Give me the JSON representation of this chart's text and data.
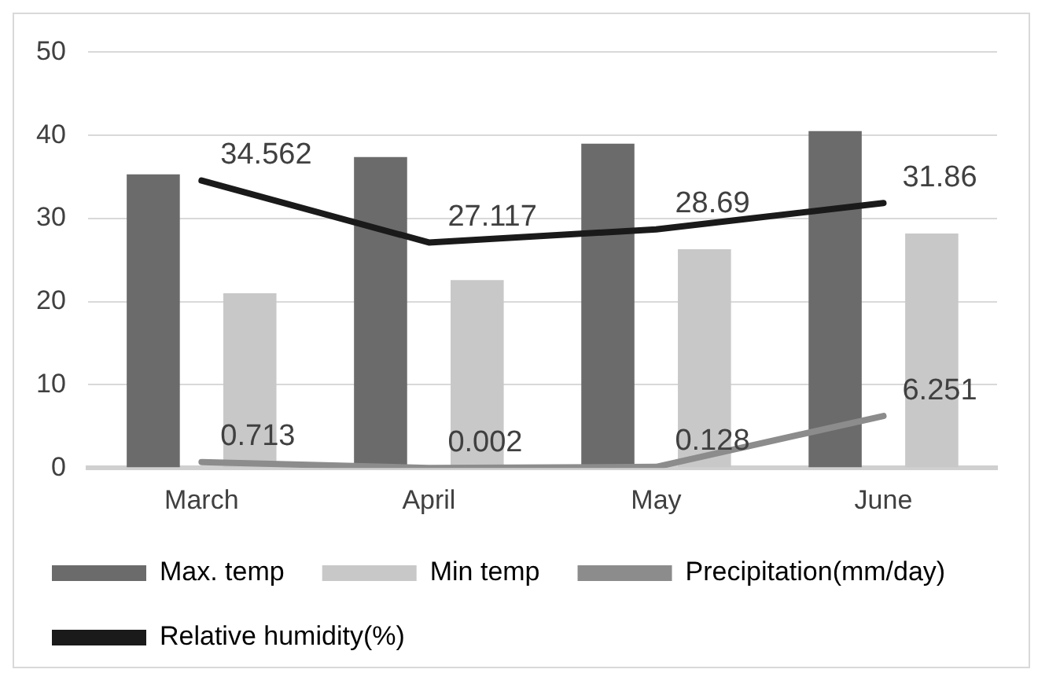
{
  "chart_data": {
    "type": "bar",
    "categories": [
      "March",
      "April",
      "May",
      "June"
    ],
    "series": [
      {
        "name": "Max. temp",
        "color": "#6b6b6b",
        "values": [
          35.3,
          37.4,
          39,
          40.5
        ]
      },
      {
        "name": "Min temp",
        "color": "#c8c8c8",
        "values": [
          21,
          22.6,
          26.3,
          28.2
        ]
      },
      {
        "name": "Precipitation(mm/day)",
        "type": "line",
        "color": "#8c8c8c",
        "values": [
          0.713,
          0.002,
          0.128,
          6.251
        ],
        "value_labels": [
          "0.713",
          "0.002",
          "0.128",
          "6.251"
        ]
      },
      {
        "name": "Relative humidity(%)",
        "type": "line",
        "color": "#1a1a1a",
        "values": [
          34.562,
          27.117,
          28.69,
          31.86
        ],
        "value_labels": [
          "34.562",
          "27.117",
          "28.69",
          "31.86"
        ]
      }
    ],
    "ylim": [
      0,
      50
    ],
    "yticks": [
      0,
      10,
      20,
      30,
      40,
      50
    ],
    "grid": "y",
    "legend": "bottom",
    "marker": "none"
  }
}
